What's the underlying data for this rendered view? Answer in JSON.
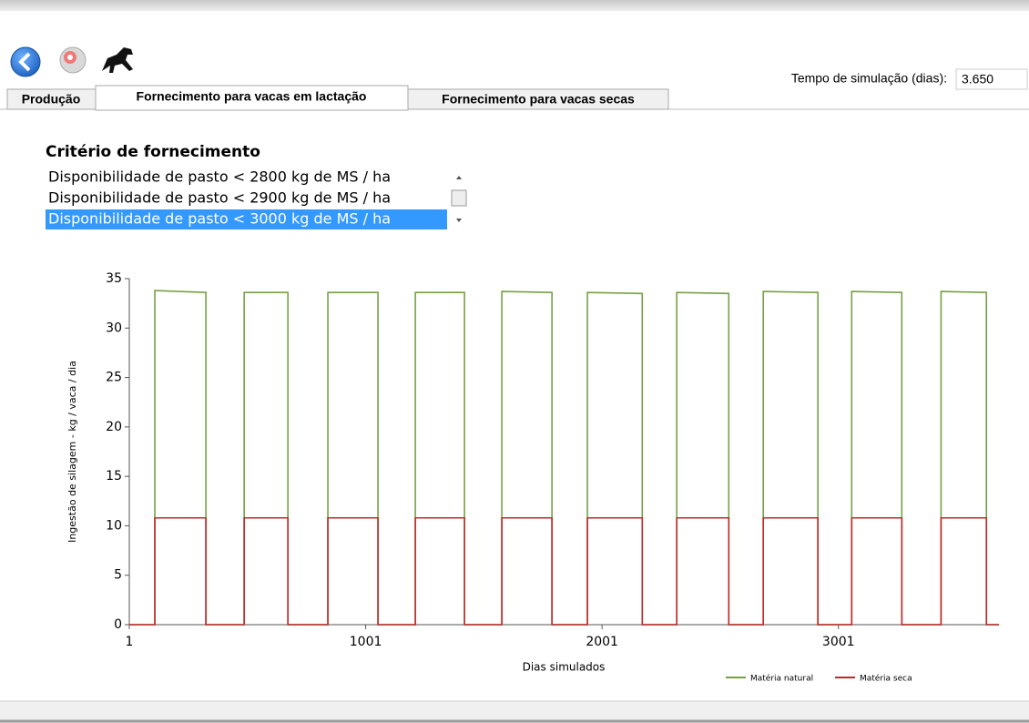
{
  "toolbar": {
    "sim_time_label": "Tempo de simulação (dias):",
    "sim_time_value": "3.650"
  },
  "tabs": [
    "Produção",
    "Fornecimento para vacas em lactação",
    "Fornecimento para vacas secas"
  ],
  "criteria": {
    "title": "Critério de fornecimento",
    "items": [
      "Disponibilidade de pasto < 2800 kg de MS / ha",
      "Disponibilidade de pasto < 2900 kg de MS / ha",
      "Disponibilidade de pasto < 3000 kg de MS / ha"
    ]
  },
  "chart_data": {
    "type": "line",
    "y_label": "Ingestão de silagem - kg / vaca / dia",
    "x_label": "Dias simulados",
    "x": [
      1,
      109,
      109,
      325,
      325,
      487,
      487,
      672,
      672,
      841,
      841,
      1053,
      1053,
      1211,
      1211,
      1419,
      1419,
      1577,
      1577,
      1789,
      1789,
      1939,
      1939,
      2171,
      2171,
      2317,
      2317,
      2537,
      2537,
      2683,
      2683,
      2914,
      2914,
      3057,
      3057,
      3269,
      3269,
      3435,
      3435,
      3627,
      3627,
      3680
    ],
    "series": [
      {
        "name": "Matéria natural",
        "color": "#77a044",
        "values": [
          0,
          0,
          33.8,
          33.6,
          0,
          0,
          33.6,
          33.6,
          0,
          0,
          33.6,
          33.6,
          0,
          0,
          33.6,
          33.6,
          0,
          0,
          33.7,
          33.6,
          0,
          0,
          33.6,
          33.5,
          0,
          0,
          33.6,
          33.5,
          0,
          0,
          33.7,
          33.6,
          0,
          0,
          33.7,
          33.6,
          0,
          0,
          33.7,
          33.6,
          0,
          0
        ]
      },
      {
        "name": "Matéria seca",
        "color": "#c0282d",
        "values": [
          0,
          0,
          10.8,
          10.8,
          0,
          0,
          10.8,
          10.8,
          0,
          0,
          10.8,
          10.8,
          0,
          0,
          10.8,
          10.8,
          0,
          0,
          10.8,
          10.8,
          0,
          0,
          10.8,
          10.8,
          0,
          0,
          10.8,
          10.8,
          0,
          0,
          10.8,
          10.8,
          0,
          0,
          10.8,
          10.8,
          0,
          0,
          10.8,
          10.8,
          0,
          0
        ]
      }
    ],
    "xlim": [
      1,
      3680
    ],
    "xticks": [
      1,
      1001,
      2001,
      3001
    ],
    "ylim": [
      0,
      35
    ],
    "yticks": [
      0,
      5,
      10,
      15,
      20,
      25,
      30,
      35
    ],
    "legend": "bottom-right"
  }
}
